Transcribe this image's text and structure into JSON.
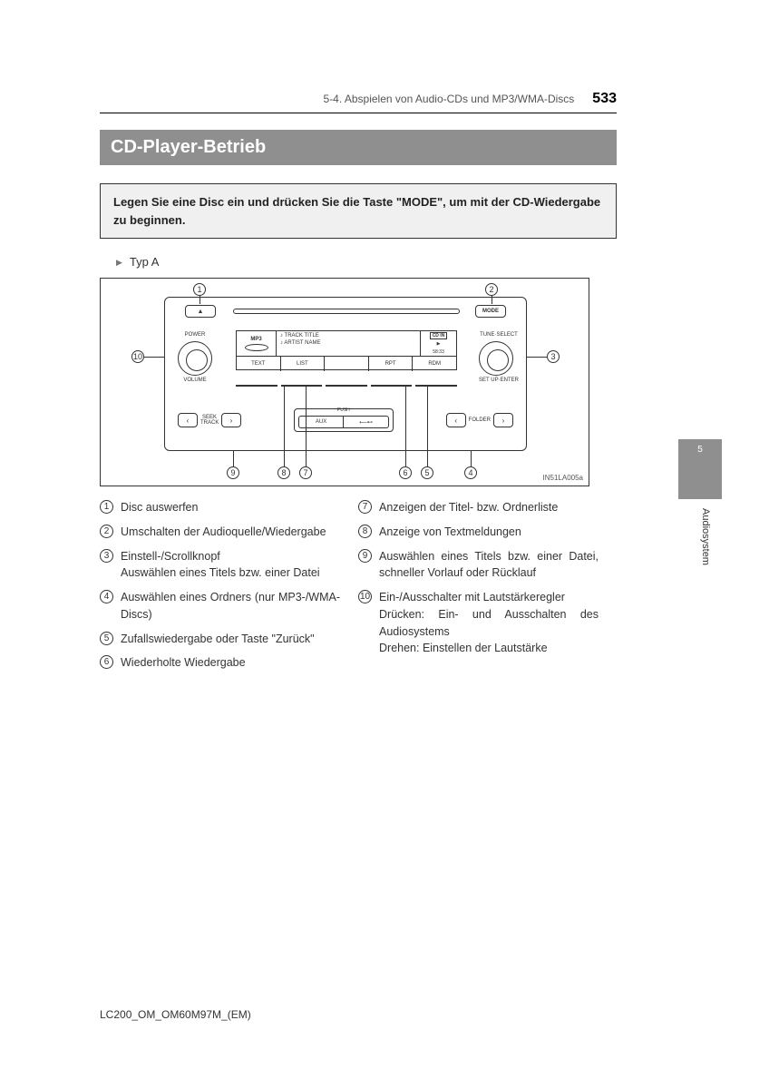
{
  "header": {
    "section": "5-4. Abspielen von Audio-CDs und MP3/WMA-Discs",
    "page_number": "533"
  },
  "title": "CD-Player-Betrieb",
  "intro": "Legen Sie eine Disc ein und drücken Sie die Taste \"MODE\", um mit der CD-Wiedergabe zu beginnen.",
  "type_label": "Typ A",
  "diagram": {
    "code": "IN51LA005a",
    "mode_label": "MODE",
    "mp3_label": "MP3",
    "track_title": "♪ TRACK TITLE",
    "artist_name": "♪ ARTIST NAME",
    "cdin": "CD IN",
    "play_indicator": "▶",
    "time": "58:33",
    "row2": [
      "TEXT",
      "LIST",
      "",
      "RPT",
      "RDM"
    ],
    "power": "POWER",
    "volume": "VOLUME",
    "tune": "TUNE·SELECT",
    "setup": "SET UP·ENTER",
    "seek": "SEEK\nTRACK",
    "folder": "FOLDER",
    "push": "PUSH",
    "aux": "AUX",
    "usb": "⟵⊷"
  },
  "callouts": {
    "c1": "1",
    "c2": "2",
    "c3": "3",
    "c4": "4",
    "c5": "5",
    "c6": "6",
    "c7": "7",
    "c8": "8",
    "c9": "9",
    "c10": "10"
  },
  "descriptions_left": [
    {
      "n": "1",
      "text": "Disc auswerfen"
    },
    {
      "n": "2",
      "text": "Umschalten der Audioquelle/Wiedergabe"
    },
    {
      "n": "3",
      "text": "Einstell-/Scrollknopf\nAuswählen eines Titels bzw. einer Datei"
    },
    {
      "n": "4",
      "text": "Auswählen eines Ordners (nur MP3-/WMA-Discs)"
    },
    {
      "n": "5",
      "text": "Zufallswiedergabe oder Taste \"Zurück\""
    },
    {
      "n": "6",
      "text": "Wiederholte Wiedergabe"
    }
  ],
  "descriptions_right": [
    {
      "n": "7",
      "text": "Anzeigen der Titel- bzw. Ordnerliste"
    },
    {
      "n": "8",
      "text": "Anzeige von Textmeldungen"
    },
    {
      "n": "9",
      "text": "Auswählen eines Titels bzw. einer Datei, schneller Vorlauf oder Rücklauf"
    },
    {
      "n": "10",
      "text": "Ein-/Ausschalter mit Lautstärkeregler\nDrücken: Ein- und Ausschalten des Audiosystems\nDrehen: Einstellen der Lautstärke"
    }
  ],
  "side": {
    "number": "5",
    "label": "Audiosystem"
  },
  "footer": "LC200_OM_OM60M97M_(EM)"
}
